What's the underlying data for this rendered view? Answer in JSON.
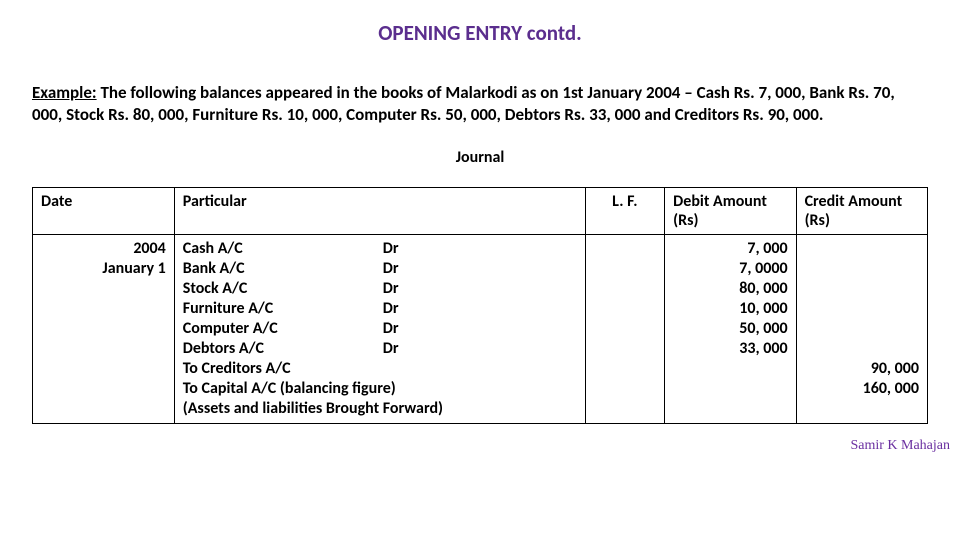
{
  "title": "OPENING ENTRY contd.",
  "example_lead": "Example:",
  "example_rest": " The following balances appeared in the books of Malarkodi as on 1st January 2004 – Cash Rs. 7, 000, Bank Rs. 70, 000, Stock Rs. 80, 000, Furniture Rs. 10, 000, Computer Rs. 50, 000, Debtors Rs. 33, 000 and Creditors Rs. 90, 000.",
  "journal_label": "Journal",
  "headers": {
    "date": "Date",
    "particular": "Particular",
    "lf": "L. F.",
    "debit": "Debit Amount (Rs)",
    "credit": "Credit Amount (Rs)"
  },
  "date_cell": {
    "year": "2004",
    "day": "January 1"
  },
  "particulars": [
    {
      "acc": "Cash A/C",
      "dr": "Dr"
    },
    {
      "acc": "Bank A/C",
      "dr": "Dr"
    },
    {
      "acc": "Stock A/C",
      "dr": "Dr"
    },
    {
      "acc": "Furniture A/C",
      "dr": " Dr"
    },
    {
      "acc": "Computer A/C",
      "dr": "  Dr"
    },
    {
      "acc": "Debtors A/C",
      "dr": "Dr"
    }
  ],
  "particulars_tail": [
    "To Creditors A/C",
    "To Capital A/C   (balancing figure)",
    "(Assets and liabilities Brought Forward)"
  ],
  "debit_values": [
    "7, 000",
    "7, 0000",
    "80, 000",
    "10, 000",
    "50, 000",
    "33, 000"
  ],
  "credit_values": [
    "90, 000",
    "160, 000"
  ],
  "credit_leading_blanks": 6,
  "footer": "Samir K Mahajan"
}
